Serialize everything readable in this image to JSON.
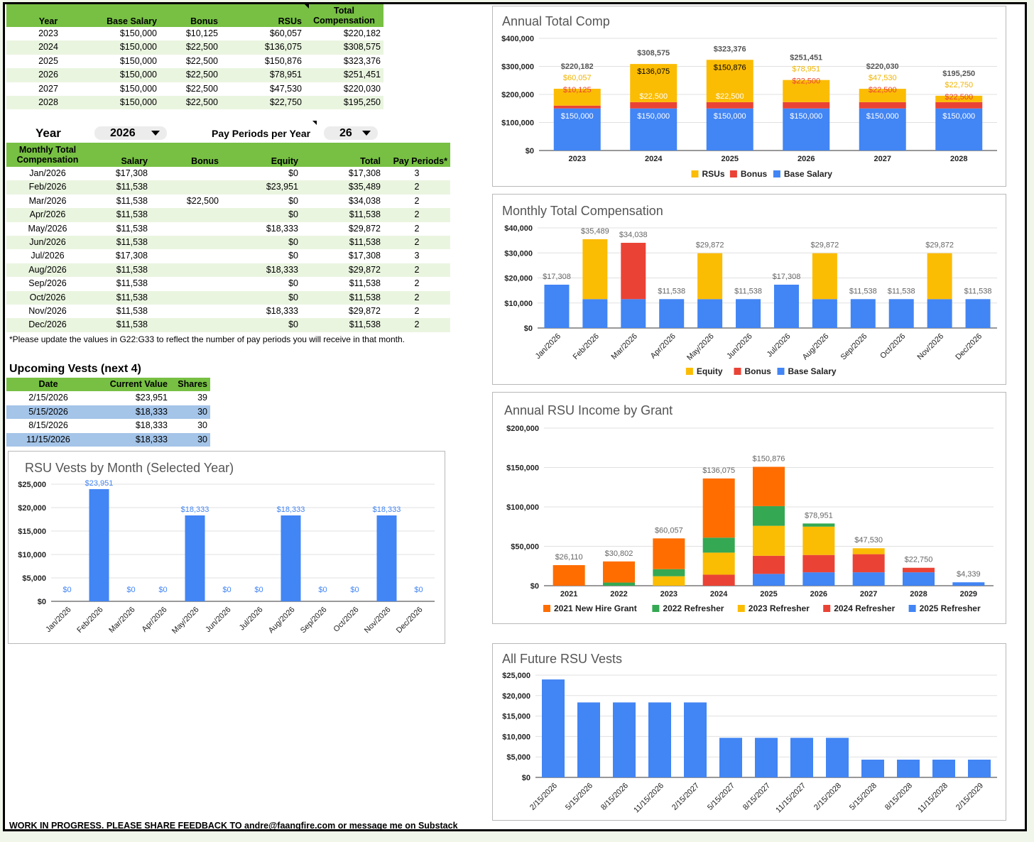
{
  "annual_table": {
    "headers": [
      "Year",
      "Base Salary",
      "Bonus",
      "RSUs",
      "Total Compensation"
    ],
    "header_total_line1": "Total",
    "header_total_line2": "Compensation",
    "rows": [
      [
        "2023",
        "$150,000",
        "$10,125",
        "$60,057",
        "$220,182"
      ],
      [
        "2024",
        "$150,000",
        "$22,500",
        "$136,075",
        "$308,575"
      ],
      [
        "2025",
        "$150,000",
        "$22,500",
        "$150,876",
        "$323,376"
      ],
      [
        "2026",
        "$150,000",
        "$22,500",
        "$78,951",
        "$251,451"
      ],
      [
        "2027",
        "$150,000",
        "$22,500",
        "$47,530",
        "$220,030"
      ],
      [
        "2028",
        "$150,000",
        "$22,500",
        "$22,750",
        "$195,250"
      ]
    ]
  },
  "controls": {
    "year_label": "Year",
    "year_value": "2026",
    "pay_periods_label": "Pay Periods per Year",
    "pay_periods_value": "26"
  },
  "monthly_table": {
    "header_first_line1": "Monthly Total",
    "header_first_line2": "Compensation",
    "headers": [
      "Salary",
      "Bonus",
      "Equity",
      "Total",
      "Pay Periods*"
    ],
    "rows": [
      [
        "Jan/2026",
        "$17,308",
        "",
        "$0",
        "$17,308",
        "3"
      ],
      [
        "Feb/2026",
        "$11,538",
        "",
        "$23,951",
        "$35,489",
        "2"
      ],
      [
        "Mar/2026",
        "$11,538",
        "$22,500",
        "$0",
        "$34,038",
        "2"
      ],
      [
        "Apr/2026",
        "$11,538",
        "",
        "$0",
        "$11,538",
        "2"
      ],
      [
        "May/2026",
        "$11,538",
        "",
        "$18,333",
        "$29,872",
        "2"
      ],
      [
        "Jun/2026",
        "$11,538",
        "",
        "$0",
        "$11,538",
        "2"
      ],
      [
        "Jul/2026",
        "$17,308",
        "",
        "$0",
        "$17,308",
        "3"
      ],
      [
        "Aug/2026",
        "$11,538",
        "",
        "$18,333",
        "$29,872",
        "2"
      ],
      [
        "Sep/2026",
        "$11,538",
        "",
        "$0",
        "$11,538",
        "2"
      ],
      [
        "Oct/2026",
        "$11,538",
        "",
        "$0",
        "$11,538",
        "2"
      ],
      [
        "Nov/2026",
        "$11,538",
        "",
        "$18,333",
        "$29,872",
        "2"
      ],
      [
        "Dec/2026",
        "$11,538",
        "",
        "$0",
        "$11,538",
        "2"
      ]
    ],
    "note": "*Please update the values in G22:G33 to reflect the number of pay periods you will receive in that month."
  },
  "vests": {
    "title": "Upcoming Vests (next 4)",
    "headers": [
      "Date",
      "Current Value",
      "Shares"
    ],
    "rows": [
      [
        "2/15/2026",
        "$23,951",
        "39"
      ],
      [
        "5/15/2026",
        "$18,333",
        "30"
      ],
      [
        "8/15/2026",
        "$18,333",
        "30"
      ],
      [
        "11/15/2026",
        "$18,333",
        "30"
      ]
    ]
  },
  "footer": "WORK IN PROGRESS. PLEASE SHARE FEEDBACK TO andre@faangfire.com or message me on Substack",
  "colors": {
    "blue": "#4285f4",
    "red": "#ea4335",
    "yellow": "#fbbc04",
    "orange": "#ff6d01",
    "green": "#34a853",
    "header_green": "#77c043",
    "grid": "#e0e0e0"
  },
  "chart_data": [
    {
      "type": "bar",
      "stacked": true,
      "title": "Annual Total Comp",
      "categories": [
        "2023",
        "2024",
        "2025",
        "2026",
        "2027",
        "2028"
      ],
      "series": [
        {
          "name": "Base Salary",
          "color": "#4285f4",
          "values": [
            150000,
            150000,
            150000,
            150000,
            150000,
            150000
          ],
          "labels": [
            "$150,000",
            "$150,000",
            "$150,000",
            "$150,000",
            "$150,000",
            "$150,000"
          ]
        },
        {
          "name": "Bonus",
          "color": "#ea4335",
          "values": [
            10125,
            22500,
            22500,
            22500,
            22500,
            22500
          ],
          "labels": [
            "$10,125",
            "$22,500",
            "$22,500",
            "$22,500",
            "$22,500",
            "$22,500"
          ]
        },
        {
          "name": "RSUs",
          "color": "#fbbc04",
          "values": [
            60057,
            136075,
            150876,
            78951,
            47530,
            22750
          ],
          "labels": [
            "$60,057",
            "$136,075",
            "$150,876",
            "$78,951",
            "$47,530",
            "$22,750"
          ]
        }
      ],
      "total_labels": [
        "$220,182",
        "$308,575",
        "$323,376",
        "$251,451",
        "$220,030",
        "$195,250"
      ],
      "ylim": [
        0,
        400000
      ],
      "yticks": [
        "$0",
        "$100,000",
        "$200,000",
        "$300,000",
        "$400,000"
      ],
      "legend": [
        "RSUs",
        "Bonus",
        "Base Salary"
      ],
      "legend_position": "bottom"
    },
    {
      "type": "bar",
      "stacked": true,
      "title": "Monthly Total Compensation",
      "categories": [
        "Jan/2026",
        "Feb/2026",
        "Mar/2026",
        "Apr/2026",
        "May/2026",
        "Jun/2026",
        "Jul/2026",
        "Aug/2026",
        "Sep/2026",
        "Oct/2026",
        "Nov/2026",
        "Dec/2026"
      ],
      "series": [
        {
          "name": "Base Salary",
          "color": "#4285f4",
          "values": [
            17308,
            11538,
            11538,
            11538,
            11538,
            11538,
            17308,
            11538,
            11538,
            11538,
            11538,
            11538
          ]
        },
        {
          "name": "Bonus",
          "color": "#ea4335",
          "values": [
            0,
            0,
            22500,
            0,
            0,
            0,
            0,
            0,
            0,
            0,
            0,
            0
          ]
        },
        {
          "name": "Equity",
          "color": "#fbbc04",
          "values": [
            0,
            23951,
            0,
            0,
            18333,
            0,
            0,
            18333,
            0,
            0,
            18333,
            0
          ]
        }
      ],
      "total_labels": [
        "$17,308",
        "$35,489",
        "$34,038",
        "$11,538",
        "$29,872",
        "$11,538",
        "$17,308",
        "$29,872",
        "$11,538",
        "$11,538",
        "$29,872",
        "$11,538"
      ],
      "ylim": [
        0,
        40000
      ],
      "yticks": [
        "$0",
        "$10,000",
        "$20,000",
        "$30,000",
        "$40,000"
      ],
      "legend": [
        "Equity",
        "Bonus",
        "Base Salary"
      ],
      "legend_position": "bottom"
    },
    {
      "type": "bar",
      "title": "RSU Vests by Month (Selected Year)",
      "categories": [
        "Jan/2026",
        "Feb/2026",
        "Mar/2026",
        "Apr/2026",
        "May/2026",
        "Jun/2026",
        "Jul/2026",
        "Aug/2026",
        "Sep/2026",
        "Oct/2026",
        "Nov/2026",
        "Dec/2026"
      ],
      "values": [
        0,
        23951,
        0,
        0,
        18333,
        0,
        0,
        18333,
        0,
        0,
        18333,
        0
      ],
      "labels": [
        "$0",
        "$23,951",
        "$0",
        "$0",
        "$18,333",
        "$0",
        "$0",
        "$18,333",
        "$0",
        "$0",
        "$18,333",
        "$0"
      ],
      "color": "#4285f4",
      "ylim": [
        0,
        25000
      ],
      "yticks": [
        "$0",
        "$5,000",
        "$10,000",
        "$15,000",
        "$20,000",
        "$25,000"
      ]
    },
    {
      "type": "bar",
      "stacked": true,
      "title": "Annual RSU Income by Grant",
      "categories": [
        "2021",
        "2022",
        "2023",
        "2024",
        "2025",
        "2026",
        "2027",
        "2028",
        "2029"
      ],
      "series": [
        {
          "name": "2025 Refresher",
          "color": "#4285f4",
          "values": [
            0,
            0,
            0,
            0,
            15000,
            17000,
            17000,
            17000,
            4339
          ]
        },
        {
          "name": "2024 Refresher",
          "color": "#ea4335",
          "values": [
            0,
            0,
            0,
            14000,
            23000,
            22000,
            23000,
            5750,
            0
          ]
        },
        {
          "name": "2023 Refresher",
          "color": "#fbbc04",
          "values": [
            0,
            0,
            12000,
            28000,
            38000,
            35951,
            7530,
            0,
            0
          ]
        },
        {
          "name": "2022 Refresher",
          "color": "#34a853",
          "values": [
            0,
            4000,
            9000,
            19000,
            25000,
            4000,
            0,
            0,
            0
          ]
        },
        {
          "name": "2021 New Hire Grant",
          "color": "#ff6d01",
          "values": [
            26110,
            26802,
            39057,
            75075,
            49876,
            0,
            0,
            0,
            0
          ]
        }
      ],
      "total_labels": [
        "$26,110",
        "$30,802",
        "$60,057",
        "$136,075",
        "$150,876",
        "$78,951",
        "$47,530",
        "$22,750",
        "$4,339"
      ],
      "ylim": [
        0,
        200000
      ],
      "yticks": [
        "$0",
        "$50,000",
        "$100,000",
        "$150,000",
        "$200,000"
      ],
      "legend": [
        "2021 New Hire Grant",
        "2022 Refresher",
        "2023 Refresher",
        "2024 Refresher",
        "2025 Refresher"
      ],
      "legend_position": "bottom"
    },
    {
      "type": "bar",
      "title": "All Future RSU Vests",
      "categories": [
        "2/15/2026",
        "5/15/2026",
        "8/15/2026",
        "11/15/2026",
        "2/15/2027",
        "5/15/2027",
        "8/15/2027",
        "11/15/2027",
        "2/15/2028",
        "5/15/2028",
        "8/15/2028",
        "11/15/2028",
        "2/15/2029"
      ],
      "values": [
        23951,
        18333,
        18333,
        18333,
        18333,
        9675,
        9675,
        9675,
        9675,
        4339,
        4339,
        4339,
        4339
      ],
      "color": "#4285f4",
      "ylim": [
        0,
        25000
      ],
      "yticks": [
        "$0",
        "$5,000",
        "$10,000",
        "$15,000",
        "$20,000",
        "$25,000"
      ]
    }
  ]
}
